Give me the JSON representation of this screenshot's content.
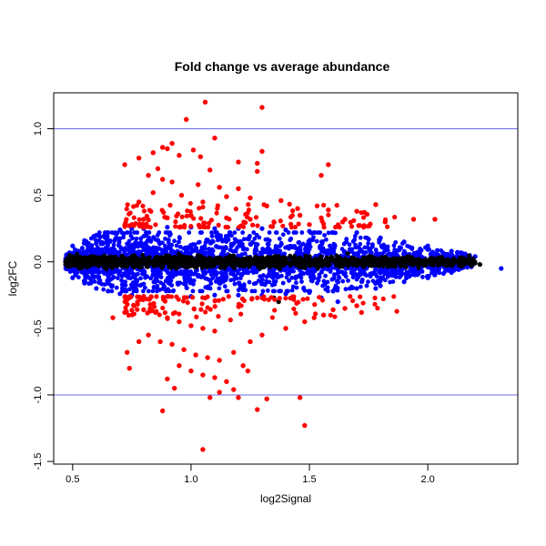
{
  "chart_data": {
    "type": "scatter",
    "title": "Fold change vs average abundance",
    "xlabel": "log2Signal",
    "ylabel": "log2FC",
    "xlim": [
      0.42,
      2.38
    ],
    "ylim": [
      -1.52,
      1.27
    ],
    "xticks": [
      0.5,
      1.0,
      1.5,
      2.0
    ],
    "xtick_labels": [
      "0.5",
      "1.0",
      "1.5",
      "2.0"
    ],
    "yticks": [
      -1.5,
      -1.0,
      -0.5,
      0.0,
      0.5,
      1.0
    ],
    "ytick_labels": [
      "-1.5",
      "-1.0",
      "-0.5",
      "0.0",
      "0.5",
      "1.0"
    ],
    "hlines": [
      1.0,
      -1.0
    ],
    "hline_color": "#6a6af0",
    "grid": false,
    "legend": "none",
    "colors": {
      "black_points": "#000000",
      "blue_points": "#0000ff",
      "red_points": "#ff0000"
    },
    "series": [
      {
        "color": "#000000",
        "description_point_count": 0,
        "points": [
          [
            0.47,
            0.0
          ],
          [
            0.48,
            0.02
          ],
          [
            0.49,
            -0.03
          ],
          [
            0.5,
            0.04
          ],
          [
            0.52,
            -0.02
          ],
          [
            0.54,
            0.03
          ],
          [
            0.56,
            -0.04
          ],
          [
            0.58,
            0.01
          ],
          [
            0.6,
            -0.01
          ],
          [
            0.62,
            0.02
          ],
          [
            0.65,
            -0.03
          ],
          [
            0.68,
            0.03
          ],
          [
            0.7,
            -0.02
          ],
          [
            0.72,
            0.0
          ],
          [
            0.75,
            0.04
          ],
          [
            0.78,
            -0.04
          ],
          [
            0.8,
            0.02
          ],
          [
            0.82,
            -0.01
          ],
          [
            0.85,
            0.03
          ],
          [
            0.88,
            -0.03
          ],
          [
            0.9,
            0.01
          ],
          [
            0.92,
            -0.02
          ],
          [
            0.95,
            0.04
          ],
          [
            0.98,
            -0.04
          ],
          [
            1.0,
            0.02
          ],
          [
            1.03,
            -0.01
          ],
          [
            1.05,
            0.03
          ],
          [
            1.08,
            -0.03
          ],
          [
            1.1,
            0.01
          ],
          [
            1.13,
            -0.02
          ],
          [
            1.15,
            0.03
          ],
          [
            1.18,
            -0.03
          ],
          [
            1.2,
            0.02
          ],
          [
            1.23,
            -0.02
          ],
          [
            1.25,
            0.01
          ],
          [
            1.28,
            -0.01
          ],
          [
            1.3,
            0.03
          ],
          [
            1.33,
            -0.03
          ],
          [
            1.35,
            0.02
          ],
          [
            1.38,
            -0.02
          ],
          [
            1.4,
            0.01
          ],
          [
            1.43,
            -0.01
          ],
          [
            1.45,
            0.02
          ],
          [
            1.48,
            -0.02
          ],
          [
            1.5,
            0.01
          ],
          [
            1.55,
            -0.01
          ],
          [
            1.6,
            0.02
          ],
          [
            1.65,
            -0.02
          ],
          [
            1.7,
            0.01
          ],
          [
            1.75,
            -0.01
          ],
          [
            1.8,
            0.02
          ],
          [
            1.85,
            -0.02
          ],
          [
            1.9,
            0.01
          ],
          [
            1.95,
            -0.01
          ],
          [
            2.0,
            0.0
          ],
          [
            2.05,
            -0.02
          ],
          [
            2.1,
            -0.01
          ],
          [
            2.15,
            -0.02
          ],
          [
            2.2,
            -0.01
          ],
          [
            1.35,
            -0.27
          ],
          [
            1.37,
            -0.3
          ],
          [
            2.22,
            -0.02
          ]
        ]
      },
      {
        "color": "#0000ff",
        "points": [
          [
            0.5,
            0.12
          ],
          [
            0.5,
            -0.12
          ],
          [
            0.55,
            0.16
          ],
          [
            0.55,
            -0.16
          ],
          [
            0.6,
            0.2
          ],
          [
            0.6,
            -0.2
          ],
          [
            0.65,
            0.22
          ],
          [
            0.65,
            -0.22
          ],
          [
            0.7,
            0.24
          ],
          [
            0.7,
            -0.24
          ],
          [
            0.75,
            0.25
          ],
          [
            0.75,
            -0.25
          ],
          [
            0.8,
            0.25
          ],
          [
            0.8,
            -0.26
          ],
          [
            0.9,
            0.26
          ],
          [
            0.9,
            -0.26
          ],
          [
            1.0,
            0.26
          ],
          [
            1.0,
            -0.26
          ],
          [
            1.1,
            0.25
          ],
          [
            1.1,
            -0.25
          ],
          [
            1.2,
            0.25
          ],
          [
            1.2,
            -0.25
          ],
          [
            1.3,
            0.25
          ],
          [
            1.3,
            -0.25
          ],
          [
            1.4,
            0.24
          ],
          [
            1.4,
            -0.24
          ],
          [
            1.5,
            0.23
          ],
          [
            1.5,
            -0.23
          ],
          [
            1.6,
            0.22
          ],
          [
            1.6,
            -0.22
          ],
          [
            1.7,
            0.22
          ],
          [
            1.7,
            -0.2
          ],
          [
            1.75,
            0.17
          ],
          [
            1.8,
            0.18
          ],
          [
            1.8,
            -0.18
          ],
          [
            1.9,
            0.15
          ],
          [
            1.9,
            -0.15
          ],
          [
            2.0,
            0.12
          ],
          [
            2.0,
            -0.12
          ],
          [
            2.1,
            0.08
          ],
          [
            2.1,
            -0.08
          ],
          [
            2.15,
            0.06
          ],
          [
            2.2,
            0.04
          ],
          [
            2.31,
            -0.05
          ],
          [
            1.78,
            -0.2
          ],
          [
            1.62,
            -0.3
          ],
          [
            1.55,
            -0.27
          ]
        ]
      },
      {
        "color": "#ff0000",
        "points": [
          [
            1.06,
            1.2
          ],
          [
            1.3,
            1.16
          ],
          [
            0.98,
            1.07
          ],
          [
            1.1,
            0.93
          ],
          [
            0.92,
            0.89
          ],
          [
            0.88,
            0.86
          ],
          [
            0.9,
            0.85
          ],
          [
            1.01,
            0.84
          ],
          [
            1.3,
            0.83
          ],
          [
            0.84,
            0.82
          ],
          [
            0.95,
            0.8
          ],
          [
            1.04,
            0.79
          ],
          [
            0.78,
            0.78
          ],
          [
            0.72,
            0.73
          ],
          [
            1.2,
            0.75
          ],
          [
            1.28,
            0.74
          ],
          [
            1.58,
            0.73
          ],
          [
            0.86,
            0.7
          ],
          [
            1.55,
            0.65
          ],
          [
            1.28,
            0.68
          ],
          [
            1.08,
            0.69
          ],
          [
            0.82,
            0.65
          ],
          [
            0.88,
            0.62
          ],
          [
            0.92,
            0.6
          ],
          [
            1.03,
            0.58
          ],
          [
            1.12,
            0.56
          ],
          [
            1.2,
            0.55
          ],
          [
            0.84,
            0.52
          ],
          [
            0.96,
            0.5
          ],
          [
            1.15,
            0.49
          ],
          [
            1.25,
            0.48
          ],
          [
            1.38,
            0.46
          ],
          [
            1.05,
            0.45
          ],
          [
            0.78,
            0.45
          ],
          [
            1.32,
            0.42
          ],
          [
            1.45,
            0.4
          ],
          [
            1.58,
            0.39
          ],
          [
            1.78,
            0.43
          ],
          [
            1.7,
            0.38
          ],
          [
            1.46,
            0.35
          ],
          [
            1.55,
            0.33
          ],
          [
            1.65,
            0.32
          ],
          [
            1.82,
            0.3
          ],
          [
            1.94,
            0.32
          ],
          [
            1.64,
            0.3
          ],
          [
            1.5,
            0.28
          ],
          [
            1.35,
            0.3
          ],
          [
            1.25,
            0.32
          ],
          [
            1.15,
            0.33
          ],
          [
            1.0,
            0.35
          ],
          [
            0.9,
            0.33
          ],
          [
            0.8,
            0.32
          ],
          [
            0.75,
            0.28
          ],
          [
            2.03,
            0.32
          ],
          [
            0.72,
            -0.38
          ],
          [
            0.76,
            -0.33
          ],
          [
            0.8,
            -0.36
          ],
          [
            0.85,
            -0.38
          ],
          [
            0.9,
            -0.42
          ],
          [
            0.95,
            -0.45
          ],
          [
            1.0,
            -0.48
          ],
          [
            1.05,
            -0.5
          ],
          [
            1.1,
            -0.52
          ],
          [
            0.82,
            -0.55
          ],
          [
            0.87,
            -0.6
          ],
          [
            0.92,
            -0.62
          ],
          [
            0.97,
            -0.66
          ],
          [
            1.02,
            -0.7
          ],
          [
            1.07,
            -0.72
          ],
          [
            1.12,
            -0.74
          ],
          [
            0.95,
            -0.78
          ],
          [
            1.0,
            -0.82
          ],
          [
            1.05,
            -0.85
          ],
          [
            1.1,
            -0.87
          ],
          [
            0.9,
            -0.88
          ],
          [
            0.93,
            -0.95
          ],
          [
            1.15,
            -0.9
          ],
          [
            1.18,
            -0.96
          ],
          [
            1.2,
            -1.02
          ],
          [
            1.12,
            -0.98
          ],
          [
            1.08,
            -1.02
          ],
          [
            0.88,
            -1.12
          ],
          [
            1.05,
            -1.41
          ],
          [
            1.46,
            -1.02
          ],
          [
            1.32,
            -1.03
          ],
          [
            1.48,
            -1.23
          ],
          [
            1.28,
            -1.11
          ],
          [
            1.25,
            -0.6
          ],
          [
            1.3,
            -0.55
          ],
          [
            1.4,
            -0.5
          ],
          [
            1.48,
            -0.45
          ],
          [
            1.52,
            -0.42
          ],
          [
            1.56,
            -0.4
          ],
          [
            1.6,
            -0.36
          ],
          [
            1.65,
            -0.35
          ],
          [
            1.72,
            -0.38
          ],
          [
            1.7,
            -0.33
          ],
          [
            0.67,
            -0.42
          ],
          [
            0.73,
            -0.68
          ],
          [
            0.74,
            -0.8
          ],
          [
            0.78,
            -0.6
          ],
          [
            1.22,
            -0.78
          ],
          [
            1.18,
            -0.68
          ],
          [
            1.24,
            -0.82
          ]
        ]
      }
    ]
  }
}
